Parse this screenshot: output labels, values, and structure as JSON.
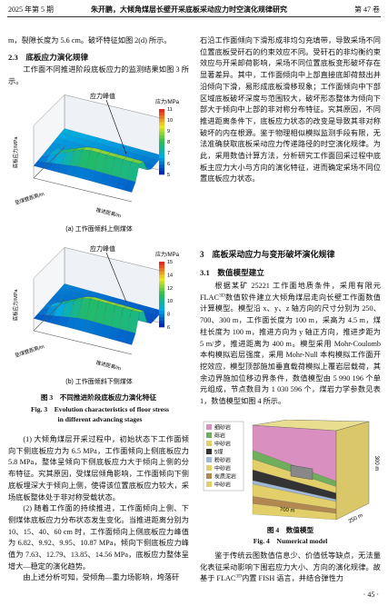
{
  "header": {
    "issue": "2025 年第 5 期",
    "title": "朱开鹏，大倾角煤层长壁开采底板采动应力时空演化规律研究",
    "volume": "第 47 卷"
  },
  "left": {
    "p0": "m，裂隙长度为 5.6 cm。破坏特征如图 2(d) 所示。",
    "heading": "2.3　底板应力演化规律",
    "p1": "工作面不同推进阶段底板应力的监测结果如图 3 所示。",
    "fig3": {
      "panels": [
        {
          "caption": "(a) 工作面倾斜上侧煤体",
          "peak": "应力峰值",
          "cbar_title": "应力/MPa",
          "cbar_ticks": [
            "11",
            "10",
            "9",
            "8",
            "7",
            "6",
            "5"
          ],
          "zlabel": "底板应力/MPa",
          "xlabel": "至煤壁距离/m",
          "ylabel": "推进距离/m"
        },
        {
          "caption": "(b) 工作面倾斜下侧煤体",
          "peak": "应力峰值",
          "cbar_title": "应力/MPa",
          "cbar_ticks": [
            "15",
            "14",
            "12",
            "10",
            "8",
            "6"
          ],
          "zlabel": "底板应力/MPa",
          "xlabel": "至煤壁距离/m",
          "ylabel": "推进距离/m"
        }
      ],
      "caption_cn": "图 3　不同推进阶段底板应力演化特征",
      "caption_en": "Fig. 3　Evolution characteristics of floor stress in different advancing stages"
    },
    "p2": "(1) 大倾角煤层开采过程中，初始状态下工作面倾向下侧底板应力为 6.5 MPa，工作面倾向上侧底板应力 5.8 MPa，整体呈倾向下侧底板应力大于倾向上侧的分布特征。究其原因，受煤层倾角影响，工作面倾向下侧底板埋深大于倾向上侧，使得该位置底板应力较大，采场底板整体处于非对称受载状态。",
    "p3": "(2) 随着工作面的持续推进，工作面倾向上侧、下侧煤体底板应力分布状态发生变化。当推进距离分别为 10、15、40、60 cm 时，工作面倾向上侧底板应力峰值为 6.82、9.92、9.95、10.87 MPa，倾向下侧底板应力峰值为 7.63、12.79、13.85、14.56 MPa，底板应力整体呈增大—稳定的演化趋势。",
    "p4": "由上述分析可知，受倾角—重力场影响，垮落矸"
  },
  "right": {
    "p0": "石沿工作面倾向下滑形成非均匀充填带，导致采场不同位置底板受矸石的约束效应不同。受矸石的非均衡约束效应与开采卸荷影响，采场不同位置底板变形破坏存在显著差异。其中，工作面倾向中上部直接底卸荷鼓出并沿倾向下滑，易形成底板滑移现象；工作面倾向中下部区域底板破坏深度与范围较大，破坏形态整体为倾向下部大于倾向中上部的非对称分布特征。究其原因，不同推进距离条件下，底板应力状态的改变是导致其非对称破坏的内在根源。鉴于物理相似模拟监测手段有限，无法准确获取底板采动应力传递路径的时空演化规律。为此，采用数值计算方法，分析研究工作面回采过程中底板主应力大小与方向的演化特征，进而确定采场不同位置底板应力状态。",
    "heading3": "3　底板采动应力与变形破坏演化规律",
    "heading31": "3.1　数值模型建立",
    "p1": [
      "根据某矿 25221 工作面地质条件，采用有限元 FLAC",
      "3D",
      "数值软件建立大倾角煤层走向长壁工作面数值计算模型。模型沿 x、y、z 轴方向的尺寸分别为 250、700、300 m，工作面长度为 100 m，采高为 4.5 m，煤柱长度为 100 m，推进方向为 y 轴正方向，推进步距为 5 m/步，推进距离为 400 m。模型采用 Mohr-Coulomb 本构模拟岩层强度，采用 Mohr-Null 本构模拟工作面开挖效应，模型顶部施加垂直载荷模拟上覆岩层载荷，其余边界施加位移边界条件，数值模型由 5 990 196 个单元组成，节点数目为 1 030 596 个，煤岩力学参数见表 1，数值模型如图 4 所示。"
    ],
    "fig4": {
      "legend": [
        "细砂岩",
        "砾岩",
        "中砂岩",
        "5煤",
        "粉砂岩",
        "中砂岩",
        "炭质泥岩",
        "中砂岩"
      ],
      "dim_z": "300 m",
      "dim_y": "700 m",
      "dim_x": "250 m",
      "caption_cn": "图 4　数值模型",
      "caption_en": "Fig. 4　Numerical model"
    },
    "p2": [
      "鉴于传统云图数值信息少、价值低等缺点，无法量化表征采动影响下围岩应力大小、方向的演化规律。故基于 FLAC",
      "3D",
      "内置 FISH 语言，并结合弹性力"
    ]
  },
  "footer": "· 45 ·"
}
